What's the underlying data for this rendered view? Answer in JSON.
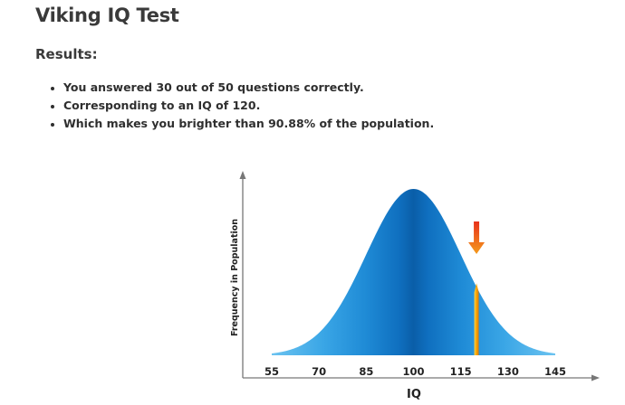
{
  "page": {
    "title": "Viking IQ Test",
    "section_title": "Results:",
    "results": [
      "You answered 30 out of 50 questions correctly.",
      "Corresponding to an IQ of 120.",
      "Which makes you brighter than 90.88% of the population."
    ]
  },
  "chart_data": {
    "type": "area",
    "title": "",
    "xlabel": "IQ",
    "ylabel": "Frequency in Population",
    "x_ticks": [
      55,
      70,
      85,
      100,
      115,
      130,
      145
    ],
    "xlim": [
      55,
      145
    ],
    "distribution": {
      "mean": 100,
      "sd": 15
    },
    "marker": {
      "value": 120,
      "label": ""
    },
    "colors": {
      "curve_light": "#5bb8ec",
      "curve_mid": "#2a94dd",
      "curve_dark": "#0a5ea8",
      "marker": "#f7a500",
      "arrow_top": "#e8321b",
      "arrow_bottom": "#f49a1c",
      "axis": "#777777"
    }
  }
}
